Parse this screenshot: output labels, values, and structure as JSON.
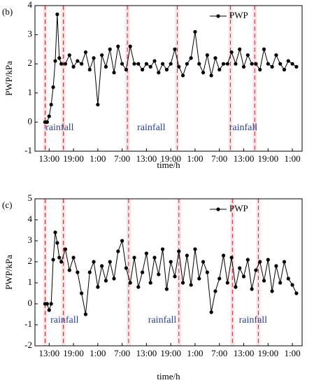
{
  "chart_data": [
    {
      "type": "line",
      "panel_label": "(b)",
      "ylabel": "PWP/kPa",
      "xlabel": "time/h",
      "series": [
        {
          "name": "PWP",
          "color": "#000000",
          "x": [
            12,
            12.5,
            13,
            13.5,
            14,
            14.5,
            15,
            15.5,
            16,
            17,
            18,
            19,
            20,
            21,
            22,
            23,
            24,
            25,
            26,
            27,
            28,
            29,
            30,
            31,
            32,
            33,
            34,
            35,
            36,
            37,
            38,
            39,
            40,
            41,
            42,
            43,
            44,
            45,
            46,
            47,
            48,
            49,
            50,
            51,
            52,
            53,
            54,
            55,
            56,
            57,
            58,
            59,
            60,
            61,
            62,
            63,
            64,
            65,
            66,
            67,
            68,
            69,
            70,
            71,
            72,
            73,
            74
          ],
          "values": [
            0,
            0,
            0.2,
            0.6,
            1.2,
            2.1,
            3.7,
            2.2,
            2.0,
            2.0,
            2.3,
            1.9,
            2.1,
            2.0,
            2.4,
            1.8,
            2.2,
            0.6,
            2.3,
            1.9,
            2.5,
            1.7,
            2.6,
            2.0,
            1.8,
            2.6,
            2.0,
            2.0,
            1.8,
            2.0,
            1.9,
            2.1,
            1.7,
            2.0,
            1.8,
            2.0,
            2.5,
            1.9,
            1.6,
            2.0,
            2.2,
            3.1,
            2.0,
            1.7,
            2.3,
            1.6,
            2.2,
            1.8,
            2.0,
            2.0,
            2.4,
            2.0,
            2.5,
            1.9,
            2.3,
            2.0,
            2.0,
            1.8,
            2.5,
            2.0,
            1.9,
            2.3,
            2.0,
            1.8,
            2.1,
            2.0,
            1.9
          ]
        }
      ],
      "xlim": [
        9.5,
        75.4
      ],
      "xticks": [
        {
          "value": 13,
          "label": "13:00"
        },
        {
          "value": 19,
          "label": "19:00"
        },
        {
          "value": 25,
          "label": "1:00"
        },
        {
          "value": 31,
          "label": "7:00"
        },
        {
          "value": 37,
          "label": "13:00"
        },
        {
          "value": 43,
          "label": "19:00"
        },
        {
          "value": 49,
          "label": "1:00"
        },
        {
          "value": 55,
          "label": "7:00"
        },
        {
          "value": 61,
          "label": "13:00"
        },
        {
          "value": 67,
          "label": "19:00"
        },
        {
          "value": 73,
          "label": "1:00"
        }
      ],
      "ylim": [
        -1,
        4
      ],
      "yticks": [
        -1,
        0,
        1,
        2,
        3,
        4
      ],
      "rainfall_lines": [
        12,
        16.5,
        32.3,
        44.6,
        57.7,
        63.7
      ],
      "annotations": [
        {
          "text": "rainfall",
          "x": 15.6,
          "y": -0.2
        },
        {
          "text": "rainfall",
          "x": 38.2,
          "y": -0.2
        },
        {
          "text": "rainfall",
          "x": 60.9,
          "y": -0.2
        }
      ]
    },
    {
      "type": "line",
      "panel_label": "(c)",
      "ylabel": "PWP/kPa",
      "xlabel": "time/h",
      "series": [
        {
          "name": "PWP",
          "color": "#000000",
          "x": [
            12,
            12.5,
            13,
            13.5,
            14,
            14.5,
            15,
            15.5,
            16,
            17,
            18,
            19,
            20,
            21,
            22,
            23,
            24,
            25,
            26,
            27,
            28,
            29,
            30,
            31,
            32,
            33,
            34,
            35,
            36,
            37,
            38,
            39,
            40,
            41,
            42,
            43,
            44,
            45,
            46,
            47,
            48,
            49,
            50,
            51,
            52,
            53,
            54,
            55,
            56,
            57,
            58,
            59,
            60,
            61,
            62,
            63,
            64,
            65,
            66,
            67,
            68,
            69,
            70,
            71,
            72,
            73,
            74
          ],
          "values": [
            0,
            0,
            -0.3,
            0,
            2.1,
            3.4,
            2.9,
            2.2,
            2.0,
            2.6,
            1.6,
            2.2,
            1.5,
            0.5,
            -0.5,
            1.5,
            2.0,
            0.8,
            1.8,
            1.1,
            2.0,
            1.2,
            2.5,
            3.0,
            1.7,
            1.0,
            2.2,
            0.8,
            1.5,
            2.4,
            1.0,
            2.2,
            1.4,
            2.6,
            0.7,
            2.0,
            1.3,
            2.5,
            1.0,
            2.3,
            0.9,
            2.6,
            1.2,
            2.0,
            1.5,
            -0.4,
            0.6,
            1.2,
            2.3,
            1.0,
            2.2,
            0.8,
            1.7,
            1.3,
            2.1,
            0.7,
            1.6,
            2.0,
            1.1,
            2.1,
            0.6,
            1.8,
            1.0,
            2.0,
            1.2,
            0.9,
            0.5
          ]
        }
      ],
      "xlim": [
        9.5,
        75.4
      ],
      "xticks": [
        {
          "value": 13,
          "label": "13:00"
        },
        {
          "value": 19,
          "label": "19:00"
        },
        {
          "value": 25,
          "label": "1:00"
        },
        {
          "value": 31,
          "label": "7:00"
        },
        {
          "value": 37,
          "label": "13:00"
        },
        {
          "value": 43,
          "label": "19:00"
        },
        {
          "value": 49,
          "label": "1:00"
        },
        {
          "value": 55,
          "label": "7:00"
        },
        {
          "value": 61,
          "label": "13:00"
        },
        {
          "value": 67,
          "label": "19:00"
        },
        {
          "value": 73,
          "label": "1:00"
        }
      ],
      "ylim": [
        -2,
        5
      ],
      "yticks": [
        -2,
        -1,
        0,
        1,
        2,
        3,
        4,
        5
      ],
      "rainfall_lines": [
        12,
        16.5,
        32.6,
        45.0,
        58.2,
        64.6
      ],
      "annotations": [
        {
          "text": "rainfall",
          "x": 16.8,
          "y": -0.8
        },
        {
          "text": "rainfall",
          "x": 40.9,
          "y": -0.8
        },
        {
          "text": "rainfall",
          "x": 63.3,
          "y": -0.8
        }
      ]
    }
  ]
}
